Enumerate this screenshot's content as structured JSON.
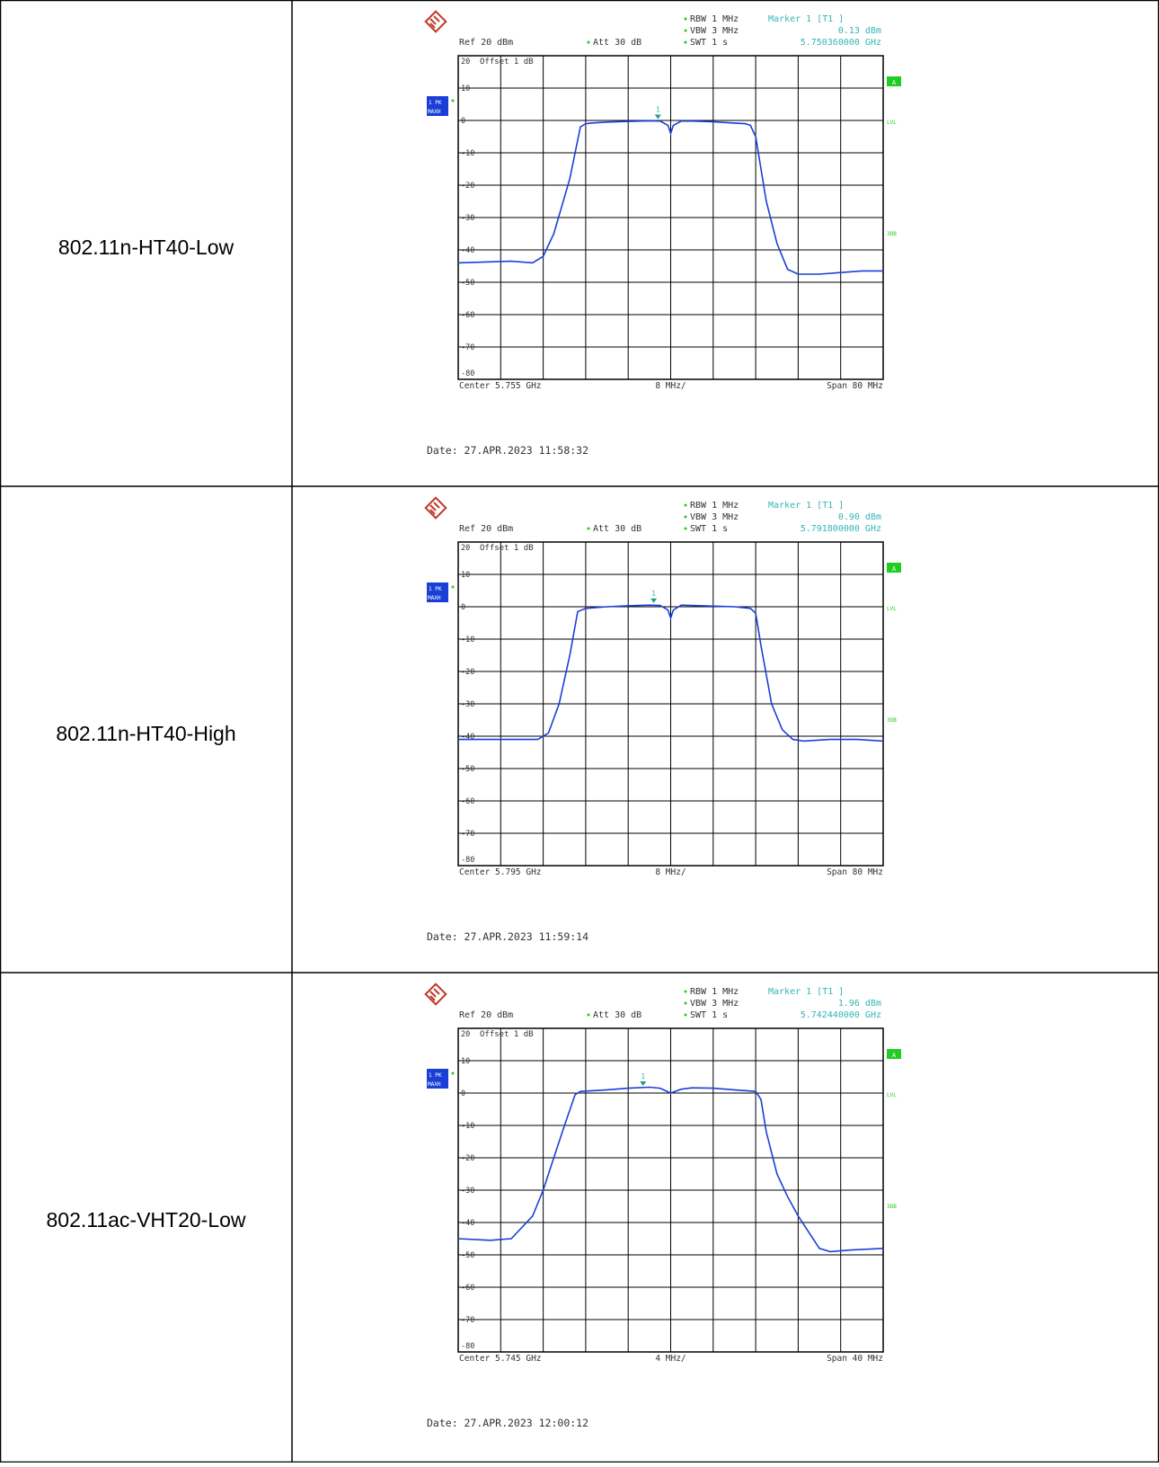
{
  "rows": [
    {
      "label": "802.11n-HT40-Low",
      "date": "Date: 27.APR.2023  11:58:32",
      "chart_data": {
        "type": "line",
        "ref_label": "Ref  20 dBm",
        "att_label": "Att  30 dB",
        "rbw_label": "RBW 1 MHz",
        "vbw_label": "VBW 3 MHz",
        "swt_label": "SWT 1 s",
        "marker_title": "Marker 1 [T1 ]",
        "marker_level": "0.13 dBm",
        "marker_freq": "5.750360000 GHz",
        "marker_label": "1",
        "offset_label": "Offset  1 dB",
        "trace_badge_top": "1 PK",
        "trace_badge_bottom": "MAXH",
        "side_a": "A",
        "side_lvl": "LVL",
        "side_3db": "3DB",
        "center_label": "Center 5.755 GHz",
        "div_label": "8 MHz/",
        "span_label": "Span 80 MHz",
        "y_ticks": [
          "20",
          "10",
          "0",
          "-10",
          "-20",
          "-30",
          "-40",
          "-50",
          "-60",
          "-70",
          "-80"
        ],
        "ylim": [
          -80,
          20
        ],
        "xlim": [
          -40,
          40
        ],
        "grid": true,
        "marker": {
          "x": -2.4,
          "y": 0.13
        },
        "series": [
          {
            "x": [
              -40,
              -30,
              -26,
              -24,
              -22,
              -19,
              -17,
              -16,
              -15,
              -12,
              -8,
              -4,
              -2,
              -0.5,
              0,
              0.5,
              2,
              4,
              8,
              12,
              14,
              15,
              16,
              18,
              20,
              22,
              24,
              28,
              32,
              36,
              40
            ],
            "y": [
              -44,
              -43.5,
              -44,
              -42,
              -35,
              -18,
              -2,
              -1,
              -0.8,
              -0.5,
              -0.3,
              -0.1,
              -0.2,
              -1.5,
              -4,
              -1.5,
              -0.2,
              -0.2,
              -0.4,
              -0.8,
              -1,
              -1.5,
              -5,
              -25,
              -38,
              -46,
              -47.5,
              -47.5,
              -47,
              -46.5,
              -46.5
            ]
          }
        ]
      }
    },
    {
      "label": "802.11n-HT40-High",
      "date": "Date: 27.APR.2023  11:59:14",
      "chart_data": {
        "type": "line",
        "ref_label": "Ref  20 dBm",
        "att_label": "Att  30 dB",
        "rbw_label": "RBW 1 MHz",
        "vbw_label": "VBW 3 MHz",
        "swt_label": "SWT 1 s",
        "marker_title": "Marker 1 [T1 ]",
        "marker_level": "0.90 dBm",
        "marker_freq": "5.791800000 GHz",
        "marker_label": "1",
        "offset_label": "Offset  1 dB",
        "trace_badge_top": "1 PK",
        "trace_badge_bottom": "MAXH",
        "side_a": "A",
        "side_lvl": "LVL",
        "side_3db": "3DB",
        "center_label": "Center 5.795 GHz",
        "div_label": "8 MHz/",
        "span_label": "Span 80 MHz",
        "y_ticks": [
          "20",
          "10",
          "0",
          "-10",
          "-20",
          "-30",
          "-40",
          "-50",
          "-60",
          "-70",
          "-80"
        ],
        "ylim": [
          -80,
          20
        ],
        "xlim": [
          -40,
          40
        ],
        "grid": true,
        "marker": {
          "x": -3.2,
          "y": 0.9
        },
        "series": [
          {
            "x": [
              -40,
              -30,
              -25,
              -23,
              -21,
              -19,
              -17.5,
              -16,
              -12,
              -8,
              -4,
              -2,
              -0.5,
              0,
              0.5,
              2,
              4,
              8,
              12,
              15,
              16,
              17,
              19,
              21,
              23,
              25,
              30,
              35,
              40
            ],
            "y": [
              -41,
              -41,
              -41,
              -39,
              -30,
              -15,
              -1.5,
              -0.5,
              0,
              0.3,
              0.5,
              0.4,
              -1,
              -3.5,
              -1,
              0.5,
              0.4,
              0.2,
              0,
              -0.5,
              -2,
              -12,
              -30,
              -38,
              -41,
              -41.5,
              -41,
              -41,
              -41.5
            ]
          }
        ]
      }
    },
    {
      "label": "802.11ac-VHT20-Low",
      "date": "Date: 27.APR.2023  12:00:12",
      "chart_data": {
        "type": "line",
        "ref_label": "Ref  20 dBm",
        "att_label": "Att  30 dB",
        "rbw_label": "RBW 1 MHz",
        "vbw_label": "VBW 3 MHz",
        "swt_label": "SWT 1 s",
        "marker_title": "Marker 1 [T1 ]",
        "marker_level": "1.96 dBm",
        "marker_freq": "5.742440000 GHz",
        "marker_label": "1",
        "offset_label": "Offset  1 dB",
        "trace_badge_top": "1 PK",
        "trace_badge_bottom": "MAXH",
        "side_a": "A",
        "side_lvl": "LVL",
        "side_3db": "3DB",
        "center_label": "Center 5.745 GHz",
        "div_label": "4 MHz/",
        "span_label": "Span 40 MHz",
        "y_ticks": [
          "20",
          "10",
          "0",
          "-10",
          "-20",
          "-30",
          "-40",
          "-50",
          "-60",
          "-70",
          "-80"
        ],
        "ylim": [
          -80,
          20
        ],
        "xlim": [
          -20,
          20
        ],
        "grid": true,
        "marker": {
          "x": -2.6,
          "y": 1.96
        },
        "series": [
          {
            "x": [
              -20,
              -17,
              -15,
              -13,
              -12,
              -11,
              -10,
              -9,
              -8.5,
              -6,
              -4,
              -2,
              -1,
              0,
              1,
              2,
              4,
              6,
              8,
              8.5,
              9,
              10,
              11,
              12,
              13,
              14,
              15,
              17,
              20
            ],
            "y": [
              -45,
              -45.5,
              -45,
              -38,
              -30,
              -20,
              -10,
              -0.5,
              0.5,
              1,
              1.5,
              1.8,
              1.5,
              0,
              1.2,
              1.6,
              1.5,
              1,
              0.5,
              -2,
              -12,
              -25,
              -32,
              -38,
              -43,
              -48,
              -49,
              -48.5,
              -48
            ]
          }
        ]
      }
    }
  ]
}
